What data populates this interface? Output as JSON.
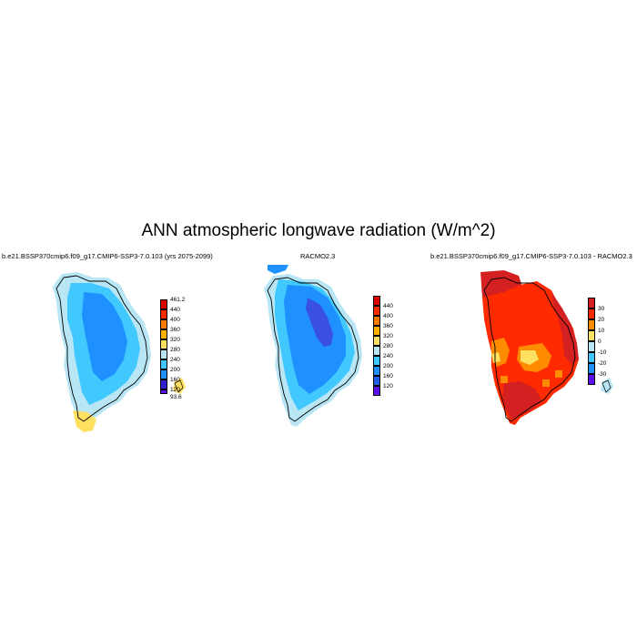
{
  "figure": {
    "title": "ANN atmospheric longwave radiation (W/m^2)"
  },
  "panels": [
    {
      "id": "model",
      "title": "b.e21.BSSP370cmip6.f09_g17.CMIP6-SSP3-7.0.103 (yrs 2075-2099)",
      "colorbar": {
        "labels": [
          "461.2",
          "440",
          "400",
          "360",
          "320",
          "280",
          "240",
          "200",
          "160",
          "120",
          "93.6"
        ],
        "colors": [
          "#e00000",
          "#ff2a00",
          "#ff7a00",
          "#ffb000",
          "#ffe060",
          "#b8e6f5",
          "#40c8ff",
          "#1e90ff",
          "#2060e8",
          "#3020d0",
          "#5a10f0"
        ]
      }
    },
    {
      "id": "obs",
      "title": "RACMO2.3",
      "colorbar": {
        "labels": [
          "440",
          "400",
          "360",
          "320",
          "280",
          "240",
          "200",
          "160",
          "120"
        ],
        "colors": [
          "#e00000",
          "#ff2a00",
          "#ff7a00",
          "#ffb000",
          "#ffe060",
          "#b8e6f5",
          "#40c8ff",
          "#1e90ff",
          "#2060e8",
          "#5a10f0"
        ]
      }
    },
    {
      "id": "diff",
      "title": "b.e21.BSSP370cmip6.f09_g17.CMIP6-SSP3-7.0.103 - RACMO2.3",
      "colorbar": {
        "labels": [
          "30",
          "20",
          "10",
          "0",
          "-10",
          "-20",
          "-30"
        ],
        "colors": [
          "#d42020",
          "#ff2a00",
          "#ff8c00",
          "#ffe060",
          "#b8e6f5",
          "#40c8ff",
          "#1e90ff",
          "#5a10f0"
        ]
      }
    }
  ]
}
